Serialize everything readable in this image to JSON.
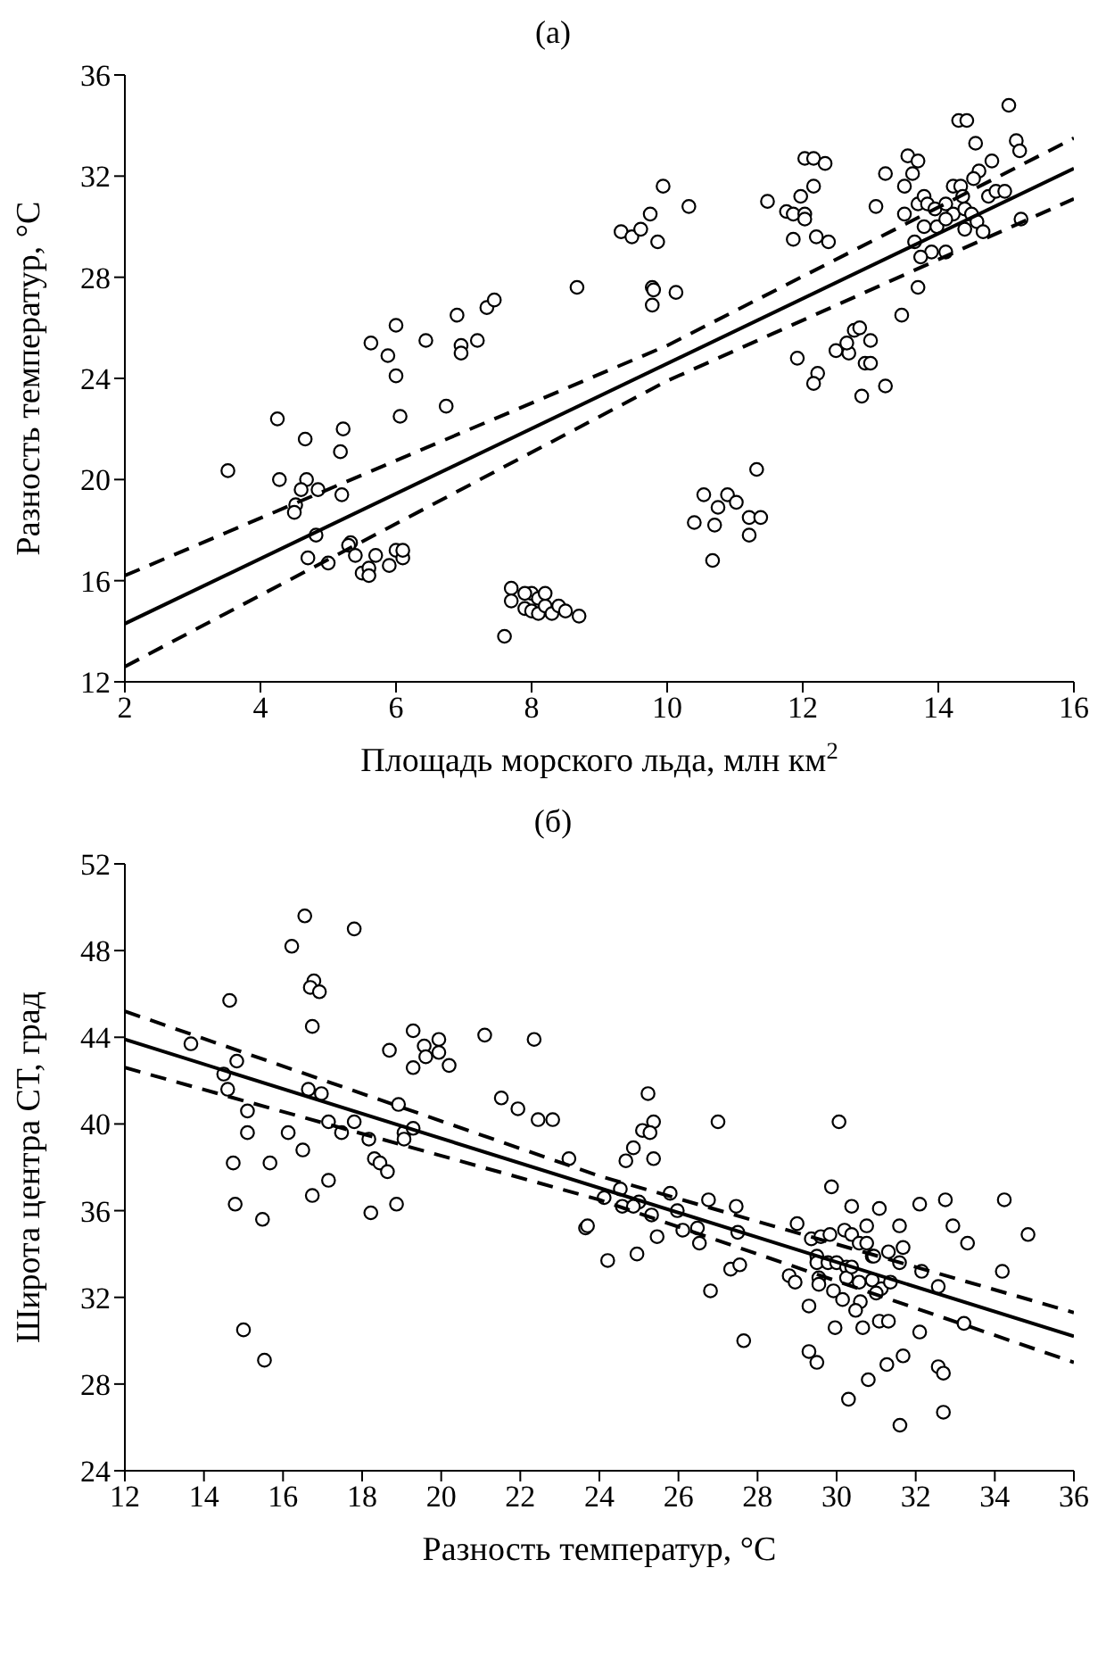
{
  "chart_data": [
    {
      "type": "scatter",
      "title": "(а)",
      "xlabel": "Площадь морского льда, млн км$^{2}$",
      "ylabel": "Разность температур, °C",
      "xlim": [
        2,
        16
      ],
      "xticks": [
        2,
        4,
        6,
        8,
        10,
        12,
        14,
        16
      ],
      "ylim": [
        12,
        36
      ],
      "yticks": [
        12,
        16,
        20,
        24,
        28,
        32,
        36
      ],
      "grid": false,
      "legend": false,
      "series": [
        {
          "type": "scatter",
          "marker": "circle",
          "color": "#000000",
          "x": [
            3.52,
            4.25,
            4.28,
            4.66,
            4.68,
            4.6,
            4.85,
            4.52,
            4.5,
            5.22,
            5.18,
            5.2,
            4.82,
            5.33,
            4.7,
            5.0,
            5.3,
            5.4,
            5.5,
            5.6,
            5.6,
            5.7,
            5.9,
            6.0,
            6.1,
            6.1,
            5.63,
            5.88,
            6.0,
            6.0,
            6.06,
            6.44,
            6.74,
            6.9,
            6.96,
            6.96,
            7.2,
            7.34,
            7.45,
            8.67,
            7.6,
            7.7,
            7.7,
            7.9,
            8.0,
            8.0,
            8.1,
            8.1,
            8.2,
            8.3,
            8.4,
            8.5,
            8.7,
            7.9,
            8.2,
            9.32,
            9.48,
            9.61,
            9.75,
            9.86,
            9.94,
            10.32,
            9.78,
            9.8,
            10.13,
            9.78,
            11.32,
            10.54,
            10.89,
            10.75,
            11.02,
            11.21,
            11.38,
            10.4,
            10.7,
            11.21,
            10.67,
            11.48,
            11.76,
            11.86,
            12.03,
            12.03,
            11.97,
            12.03,
            12.16,
            12.33,
            12.16,
            11.86,
            12.2,
            12.38,
            11.92,
            12.22,
            12.16,
            12.49,
            12.68,
            12.65,
            12.76,
            12.84,
            13.0,
            12.92,
            13.0,
            12.87,
            13.22,
            13.08,
            13.22,
            13.55,
            13.7,
            13.62,
            13.5,
            13.5,
            13.7,
            13.79,
            14.3,
            14.42,
            14.55,
            15.04,
            15.15,
            15.2,
            14.79,
            14.6,
            14.22,
            14.33,
            14.74,
            14.85,
            14.98,
            15.22,
            13.7,
            13.46,
            13.9,
            14.11,
            13.74,
            13.84,
            13.95,
            14.11,
            14.22,
            14.39,
            14.49,
            14.57,
            14.66,
            14.39,
            13.79,
            13.98,
            14.11,
            13.65,
            14.52,
            14.36
          ],
          "values": [
            20.35,
            22.4,
            20.0,
            21.6,
            20.0,
            19.6,
            19.6,
            19.0,
            18.7,
            22.0,
            21.1,
            19.4,
            17.8,
            17.5,
            16.9,
            16.7,
            17.4,
            17.0,
            16.3,
            16.5,
            16.2,
            17.0,
            16.6,
            17.2,
            16.9,
            17.2,
            25.4,
            24.9,
            26.1,
            24.1,
            22.5,
            25.5,
            22.9,
            26.5,
            25.3,
            25.0,
            25.5,
            26.8,
            27.1,
            27.6,
            13.8,
            15.7,
            15.2,
            14.9,
            15.5,
            14.8,
            15.3,
            14.7,
            15.0,
            14.7,
            15.0,
            14.8,
            14.6,
            15.5,
            15.5,
            29.8,
            29.6,
            29.9,
            30.5,
            29.4,
            31.6,
            30.8,
            27.6,
            27.5,
            27.4,
            26.9,
            20.4,
            19.4,
            19.4,
            18.9,
            19.1,
            18.5,
            18.5,
            18.3,
            18.2,
            17.8,
            16.8,
            31.0,
            30.6,
            30.5,
            30.5,
            30.3,
            31.2,
            32.7,
            32.7,
            32.5,
            31.6,
            29.5,
            29.6,
            29.4,
            24.8,
            24.2,
            23.8,
            25.1,
            25.0,
            25.4,
            25.9,
            26.0,
            25.5,
            24.6,
            24.6,
            23.3,
            23.7,
            30.8,
            32.1,
            32.8,
            32.6,
            32.1,
            31.6,
            30.5,
            30.9,
            31.2,
            34.2,
            34.2,
            33.3,
            34.8,
            33.4,
            33.0,
            32.6,
            32.2,
            31.6,
            31.6,
            31.2,
            31.4,
            31.4,
            30.3,
            27.6,
            26.5,
            29.0,
            29.0,
            28.8,
            30.9,
            30.7,
            30.9,
            30.5,
            30.7,
            30.5,
            30.2,
            29.8,
            29.9,
            30.0,
            30.0,
            30.3,
            29.4,
            31.9,
            31.2
          ]
        },
        {
          "type": "line",
          "marker": "none",
          "line_style": "solid",
          "color": "#000000",
          "x": [
            2,
            16
          ],
          "values": [
            14.3,
            32.3
          ]
        },
        {
          "type": "line",
          "marker": "none",
          "line_style": "dashed",
          "color": "#000000",
          "x": [
            2,
            10,
            16
          ],
          "values": [
            16.2,
            25.3,
            33.5
          ]
        },
        {
          "type": "line",
          "marker": "none",
          "line_style": "dashed",
          "color": "#000000",
          "x": [
            2,
            10,
            16
          ],
          "values": [
            12.6,
            23.9,
            31.1
          ]
        }
      ]
    },
    {
      "type": "scatter",
      "title": "(б)",
      "xlabel": "Разность температур, °C",
      "ylabel": "Широта центра СТ, град",
      "xlim": [
        12,
        36
      ],
      "xticks": [
        12,
        14,
        16,
        18,
        20,
        22,
        24,
        26,
        28,
        30,
        32,
        34,
        36
      ],
      "ylim": [
        24,
        52
      ],
      "yticks": [
        24,
        28,
        32,
        36,
        40,
        44,
        48,
        52
      ],
      "grid": false,
      "legend": false,
      "series": [
        {
          "type": "scatter",
          "marker": "circle",
          "color": "#000000",
          "x": [
            13.67,
            14.65,
            14.5,
            14.6,
            14.83,
            15.1,
            15.1,
            14.74,
            14.79,
            15.67,
            15.48,
            15.0,
            15.53,
            16.55,
            16.22,
            16.78,
            16.69,
            16.92,
            16.74,
            17.8,
            16.64,
            16.97,
            17.15,
            17.48,
            17.8,
            16.13,
            16.5,
            16.74,
            17.15,
            18.17,
            18.31,
            18.45,
            18.64,
            18.22,
            18.87,
            18.69,
            18.92,
            19.29,
            19.57,
            19.61,
            19.94,
            19.94,
            20.2,
            19.29,
            19.06,
            19.29,
            19.06,
            21.1,
            21.52,
            21.94,
            22.35,
            22.45,
            22.82,
            23.23,
            23.65,
            25.23,
            25.09,
            25.37,
            25.28,
            24.86,
            24.67,
            25.37,
            27.0,
            30.06,
            24.12,
            24.53,
            24.58,
            25.0,
            24.86,
            25.79,
            25.32,
            25.97,
            23.7,
            24.21,
            24.95,
            25.46,
            26.11,
            26.48,
            26.53,
            26.76,
            27.46,
            27.5,
            26.81,
            27.32,
            27.55,
            27.65,
            29.0,
            29.87,
            30.38,
            31.08,
            30.76,
            31.59,
            32.1,
            32.75,
            34.24,
            32.94,
            33.31,
            34.84,
            34.19,
            32.57,
            32.15,
            31.68,
            31.31,
            31.59,
            30.9,
            29.36,
            29.6,
            29.83,
            30.2,
            30.38,
            30.57,
            30.76,
            30.94,
            29.5,
            29.5,
            29.78,
            30.0,
            30.25,
            30.25,
            30.38,
            30.57,
            30.9,
            31.13,
            31.36,
            31.0,
            28.8,
            28.95,
            29.55,
            29.55,
            29.92,
            30.15,
            30.6,
            30.48,
            29.3,
            29.96,
            30.66,
            31.08,
            31.31,
            32.1,
            33.22,
            29.3,
            29.5,
            31.27,
            31.68,
            32.57,
            30.3,
            31.6,
            32.7,
            32.7,
            30.8
          ],
          "values": [
            43.7,
            45.7,
            42.3,
            41.6,
            42.9,
            40.6,
            39.6,
            38.2,
            36.3,
            38.2,
            35.6,
            30.5,
            29.1,
            49.6,
            48.2,
            46.6,
            46.3,
            46.1,
            44.5,
            49.0,
            41.6,
            41.4,
            40.1,
            39.6,
            40.1,
            39.6,
            38.8,
            36.7,
            37.4,
            39.3,
            38.4,
            38.2,
            37.8,
            35.9,
            36.3,
            43.4,
            40.9,
            44.3,
            43.6,
            43.1,
            43.9,
            43.3,
            42.7,
            42.6,
            39.6,
            39.8,
            39.3,
            44.1,
            41.2,
            40.7,
            43.9,
            40.2,
            40.2,
            38.4,
            35.2,
            41.4,
            39.7,
            40.1,
            39.6,
            38.9,
            38.3,
            38.4,
            40.1,
            40.1,
            36.6,
            37.0,
            36.2,
            36.4,
            36.2,
            36.8,
            35.8,
            36.0,
            35.3,
            33.7,
            34.0,
            34.8,
            35.1,
            35.2,
            34.5,
            36.5,
            36.2,
            35.0,
            32.3,
            33.3,
            33.5,
            30.0,
            35.4,
            37.1,
            36.2,
            36.1,
            35.3,
            35.3,
            36.3,
            36.5,
            36.5,
            35.3,
            34.5,
            34.9,
            33.2,
            32.5,
            33.2,
            34.3,
            34.1,
            33.6,
            33.9,
            34.7,
            34.8,
            34.9,
            35.1,
            34.9,
            34.5,
            34.5,
            33.9,
            33.9,
            33.6,
            33.6,
            33.6,
            33.4,
            32.9,
            33.4,
            32.7,
            32.8,
            32.4,
            32.7,
            32.2,
            33.0,
            32.7,
            32.9,
            32.6,
            32.3,
            31.9,
            31.8,
            31.4,
            31.6,
            30.6,
            30.6,
            30.9,
            30.9,
            30.4,
            30.8,
            29.5,
            29.0,
            28.9,
            29.3,
            28.8,
            27.3,
            26.1,
            28.5,
            26.7,
            28.2
          ]
        },
        {
          "type": "line",
          "marker": "none",
          "line_style": "solid",
          "color": "#000000",
          "x": [
            12,
            36
          ],
          "values": [
            43.9,
            30.2
          ]
        },
        {
          "type": "line",
          "marker": "none",
          "line_style": "dashed",
          "color": "#000000",
          "x": [
            12,
            24,
            36
          ],
          "values": [
            45.2,
            37.6,
            31.3
          ]
        },
        {
          "type": "line",
          "marker": "none",
          "line_style": "dashed",
          "color": "#000000",
          "x": [
            12,
            24,
            36
          ],
          "values": [
            42.6,
            36.5,
            29.0
          ]
        }
      ]
    }
  ]
}
